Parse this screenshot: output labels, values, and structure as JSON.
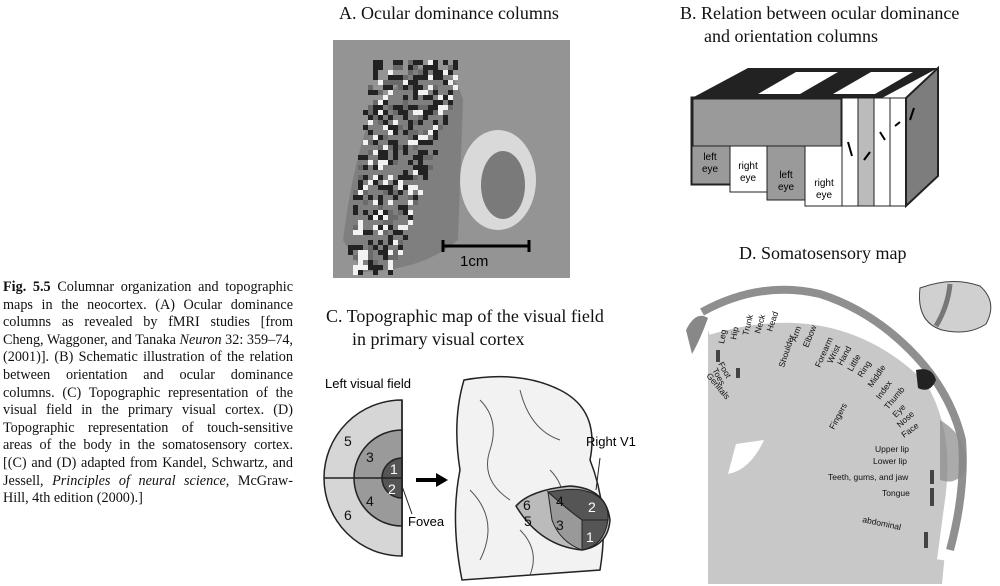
{
  "caption": {
    "label": "Fig. 5.5",
    "p1": " Columnar organization and topographic maps in the neocortex. (A) Ocular dominance columns as revealed by fMRI studies [from Cheng, Waggoner, and Tanaka ",
    "journal": "Neuron",
    "p2": " 32: 359–74, (2001)]. (B) Schematic illustration of the relation between orientation and ocular dominance columns. (C) Topographic representation of the visual field in the primary visual cortex. (D) Topographic representation of touch-sensitive areas of the body in the somatosensory cortex. [(C) and (D) adapted from Kandel, Schwartz, and Jessell, ",
    "book": "Principles of neural science",
    "p3": ", McGraw-Hill, 4th edition (2000).]"
  },
  "panelA": {
    "title": "A.  Ocular dominance columns",
    "scale": "1cm"
  },
  "panelB": {
    "title1": "B.  Relation between ocular dominance",
    "title2": "and orientation columns",
    "eyes": [
      [
        "left",
        "eye"
      ],
      [
        "right",
        "eye"
      ],
      [
        "left",
        "eye"
      ],
      [
        "right",
        "eye"
      ]
    ]
  },
  "panelC": {
    "title1": "C.  Topographic map of the visual field",
    "title2": "in primary visual cortex",
    "field_label": "Left visual field",
    "fovea": "Fovea",
    "v1": "Right V1",
    "regions": [
      "1",
      "2",
      "3",
      "4",
      "5",
      "6"
    ]
  },
  "panelD": {
    "title": "D.  Somatosensory map",
    "labels": [
      "Leg",
      "Hip",
      "Trunk",
      "Neck",
      "Head",
      "Shoulder",
      "Arm",
      "Elbow",
      "Forearm",
      "Wrist",
      "Hand",
      "Little",
      "Ring",
      "Middle",
      "Index",
      "Thumb",
      "Eye",
      "Nose",
      "Face",
      "Upper lip",
      "Lower lip",
      "Teeth, gums, and jaw",
      "Tongue",
      "abdominal",
      "Fingers",
      "Foot",
      "Toes",
      "Genitals"
    ]
  }
}
